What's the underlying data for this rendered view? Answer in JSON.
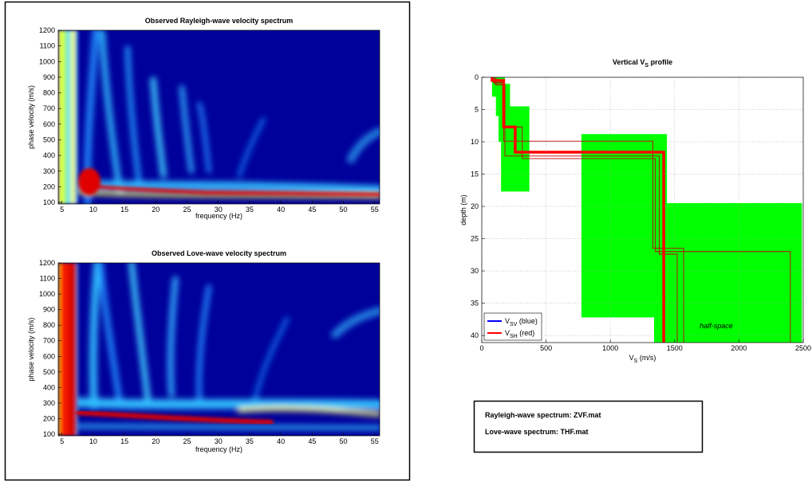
{
  "chart_data": [
    {
      "type": "heatmap",
      "title": "Observed Rayleigh-wave velocity spectrum",
      "x_label": "frequency (Hz)",
      "y_label": "phase velocity (m/s)",
      "xlim": [
        4.4,
        55.8
      ],
      "ylim": [
        90,
        1200
      ],
      "xticks": [
        5,
        10,
        15,
        20,
        25,
        30,
        35,
        40,
        45,
        50,
        55
      ],
      "yticks": [
        100,
        200,
        300,
        400,
        500,
        600,
        700,
        800,
        900,
        1000,
        1100,
        1200
      ]
    },
    {
      "type": "heatmap",
      "title": "Observed Love-wave velocity spectrum",
      "x_label": "frequency (Hz)",
      "y_label": "phase velocity (m/s)",
      "xlim": [
        4.4,
        55.8
      ],
      "ylim": [
        90,
        1200
      ],
      "xticks": [
        5,
        10,
        15,
        20,
        25,
        30,
        35,
        40,
        45,
        50,
        55
      ],
      "yticks": [
        100,
        200,
        300,
        400,
        500,
        600,
        700,
        800,
        900,
        1000,
        1100,
        1200
      ]
    },
    {
      "type": "profile",
      "title": [
        "Vertical V",
        "S",
        " profile"
      ],
      "x_label": [
        "V",
        "S",
        " (m/s)"
      ],
      "y_label": "depth (m)",
      "xlim": [
        0,
        2500
      ],
      "ylim": [
        0,
        41.1
      ],
      "y_reversed": true,
      "xticks": [
        0,
        500,
        1000,
        1500,
        2000,
        2500
      ],
      "yticks": [
        0,
        5,
        10,
        15,
        20,
        25,
        30,
        35,
        40
      ],
      "grid": true,
      "legend": "lower left",
      "range_color": "#00ff00",
      "ranges": [
        {
          "vs": [
            80,
            180
          ],
          "depth": [
            0,
            3
          ]
        },
        {
          "vs": [
            110,
            220
          ],
          "depth": [
            1,
            6
          ]
        },
        {
          "vs": [
            130,
            220
          ],
          "depth": [
            4.5,
            10
          ]
        },
        {
          "vs": [
            150,
            370
          ],
          "depth": [
            4.5,
            17.7
          ]
        },
        {
          "vs": [
            775,
            1440
          ],
          "depth": [
            8.8,
            37.2
          ]
        },
        {
          "vs": [
            1440,
            2490
          ],
          "depth": [
            19.5,
            41.1
          ]
        },
        {
          "vs": [
            1340,
            1530
          ],
          "depth": [
            37.2,
            41.1
          ]
        }
      ],
      "series": [
        {
          "name": [
            "V",
            "SV",
            " (blue)"
          ],
          "color": "#0000ff"
        },
        {
          "name": [
            "V",
            "SH",
            " (red)"
          ],
          "color": "#ff0000",
          "vs": [
            80,
            80,
            170,
            170,
            260,
            260,
            1415,
            1415
          ],
          "depth": [
            0,
            0.5,
            0.5,
            7.7,
            7.7,
            11.6,
            11.6,
            41.1
          ]
        }
      ],
      "alt_color": "#c00000",
      "alternatives": [
        {
          "vs": [
            100,
            100,
            175,
            175,
            315,
            315,
            1350,
            1350,
            2400,
            2400
          ],
          "depth": [
            0,
            1,
            1,
            7.7,
            7.7,
            12.6,
            12.6,
            27,
            27,
            41.1
          ]
        },
        {
          "vs": [
            90,
            90,
            170,
            170,
            1330,
            1330,
            1570,
            1570
          ],
          "depth": [
            0,
            0.8,
            0.8,
            9.9,
            9.9,
            26.5,
            26.5,
            41.1
          ]
        },
        {
          "vs": [
            110,
            110,
            180,
            180,
            1380,
            1380,
            1520,
            1520
          ],
          "depth": [
            0,
            1.2,
            1.2,
            12.2,
            12.2,
            27.4,
            27.4,
            41.1
          ]
        }
      ],
      "annotations": [
        "half-space"
      ]
    }
  ],
  "info_box": {
    "lines": [
      "Rayleigh-wave spectrum: ZVF.mat",
      "Love-wave spectrum: THF.mat"
    ]
  }
}
